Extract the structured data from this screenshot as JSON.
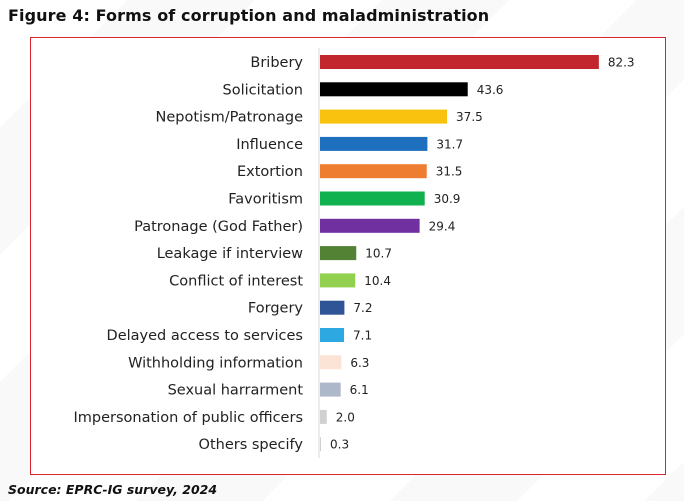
{
  "figure_title": "Figure 4: Forms of corruption and maladministration",
  "source": "Source: EPRC-IG survey, 2024",
  "chart_data": {
    "type": "bar",
    "orientation": "horizontal",
    "categories": [
      "Bribery",
      "Solicitation",
      "Nepotism/Patronage",
      "Influence",
      "Extortion",
      "Favoritism",
      "Patronage (God Father)",
      "Leakage if interview",
      "Conflict of interest",
      "Forgery",
      "Delayed access to services",
      "Withholding information",
      "Sexual harrarment",
      "Impersonation of public officers",
      "Others specify"
    ],
    "values": [
      82.3,
      43.6,
      37.5,
      31.7,
      31.5,
      30.9,
      29.4,
      10.7,
      10.4,
      7.2,
      7.1,
      6.3,
      6.1,
      2.0,
      0.3
    ],
    "value_labels": [
      "82.3",
      "43.6",
      "37.5",
      "31.7",
      "31.5",
      "30.9",
      "29.4",
      "10.7",
      "10.4",
      "7.2",
      "7.1",
      "6.3",
      "6.1",
      "2.0",
      "0.3"
    ],
    "colors": [
      "#c1272d",
      "#000000",
      "#f9c20f",
      "#1f6fbf",
      "#ee7d31",
      "#12b150",
      "#7030a0",
      "#548235",
      "#92d050",
      "#2f5597",
      "#2ea8e0",
      "#fbe4d5",
      "#adb9ca",
      "#d0d0d0",
      "#d0d0d0"
    ],
    "xlim": [
      0,
      85
    ],
    "grid": false,
    "legend": "none"
  }
}
